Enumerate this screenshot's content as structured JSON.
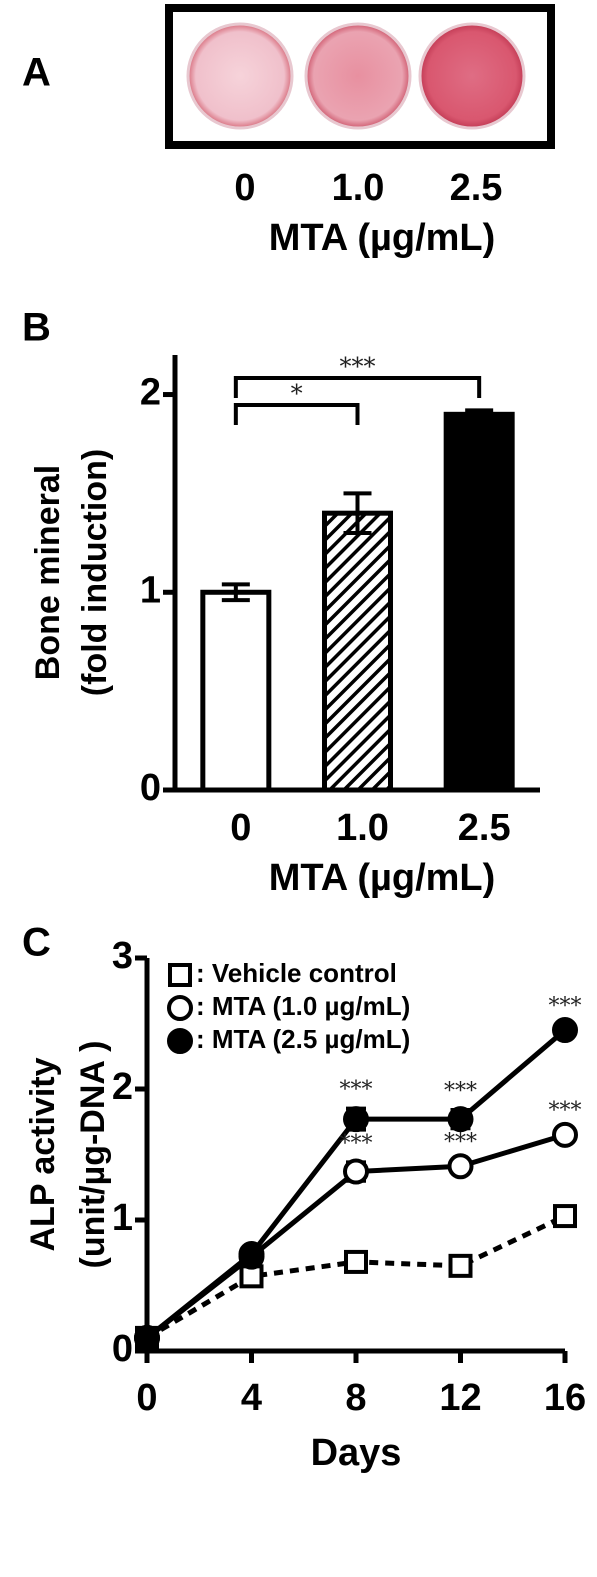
{
  "panel_a": {
    "label": "A",
    "categories": [
      "0",
      "1.0",
      "2.5"
    ],
    "xlabel": "MTA (µg/mL)"
  },
  "chart_data": [
    {
      "type": "bar",
      "label": "B",
      "ylabel": [
        "Bone mineral",
        "(fold induction)"
      ],
      "xlabel": "MTA (µg/mL)",
      "categories": [
        "0",
        "1.0",
        "2.5"
      ],
      "values": [
        1.0,
        1.4,
        1.9
      ],
      "errors": [
        0.04,
        0.1,
        0.02
      ],
      "colors": [
        "#ffffff",
        "#ffffff",
        "#000000"
      ],
      "hatch": [
        false,
        true,
        false
      ],
      "ylim": [
        0,
        2.2
      ],
      "yticks": [
        0,
        1,
        2
      ],
      "comparisons": [
        {
          "from": "0",
          "to": "1.0",
          "label": "*"
        },
        {
          "from": "0",
          "to": "2.5",
          "label": "***"
        }
      ]
    },
    {
      "type": "line",
      "label": "C",
      "ylabel": [
        "ALP activity",
        "(unit/µg-DNA )"
      ],
      "xlabel": "Days",
      "x": [
        0,
        4,
        8,
        12,
        16
      ],
      "xlim": [
        0,
        16
      ],
      "xticks": [
        0,
        4,
        8,
        12,
        16
      ],
      "ylim": [
        0,
        3
      ],
      "yticks": [
        0,
        1,
        2,
        3
      ],
      "series": [
        {
          "name": ": Vehicle control",
          "marker": "square",
          "filled": false,
          "dashed": true,
          "values": [
            0.1,
            0.57,
            0.68,
            0.65,
            1.03
          ],
          "errors": [
            0.02,
            0.03,
            0.03,
            0.03,
            0.04
          ]
        },
        {
          "name": ": MTA (1.0 µg/mL)",
          "marker": "circle",
          "filled": false,
          "dashed": false,
          "values": [
            0.1,
            0.72,
            1.37,
            1.41,
            1.65
          ],
          "errors": [
            0.02,
            0.03,
            0.07,
            0.04,
            0.04
          ],
          "significance": [
            null,
            null,
            "***",
            "***",
            "***"
          ]
        },
        {
          "name": ": MTA (2.5 µg/mL)",
          "marker": "circle",
          "filled": true,
          "dashed": false,
          "values": [
            0.1,
            0.74,
            1.77,
            1.77,
            2.45
          ],
          "errors": [
            0.02,
            0.03,
            0.08,
            0.07,
            0.04
          ],
          "significance": [
            null,
            null,
            "***",
            "***",
            "***"
          ]
        }
      ]
    }
  ]
}
